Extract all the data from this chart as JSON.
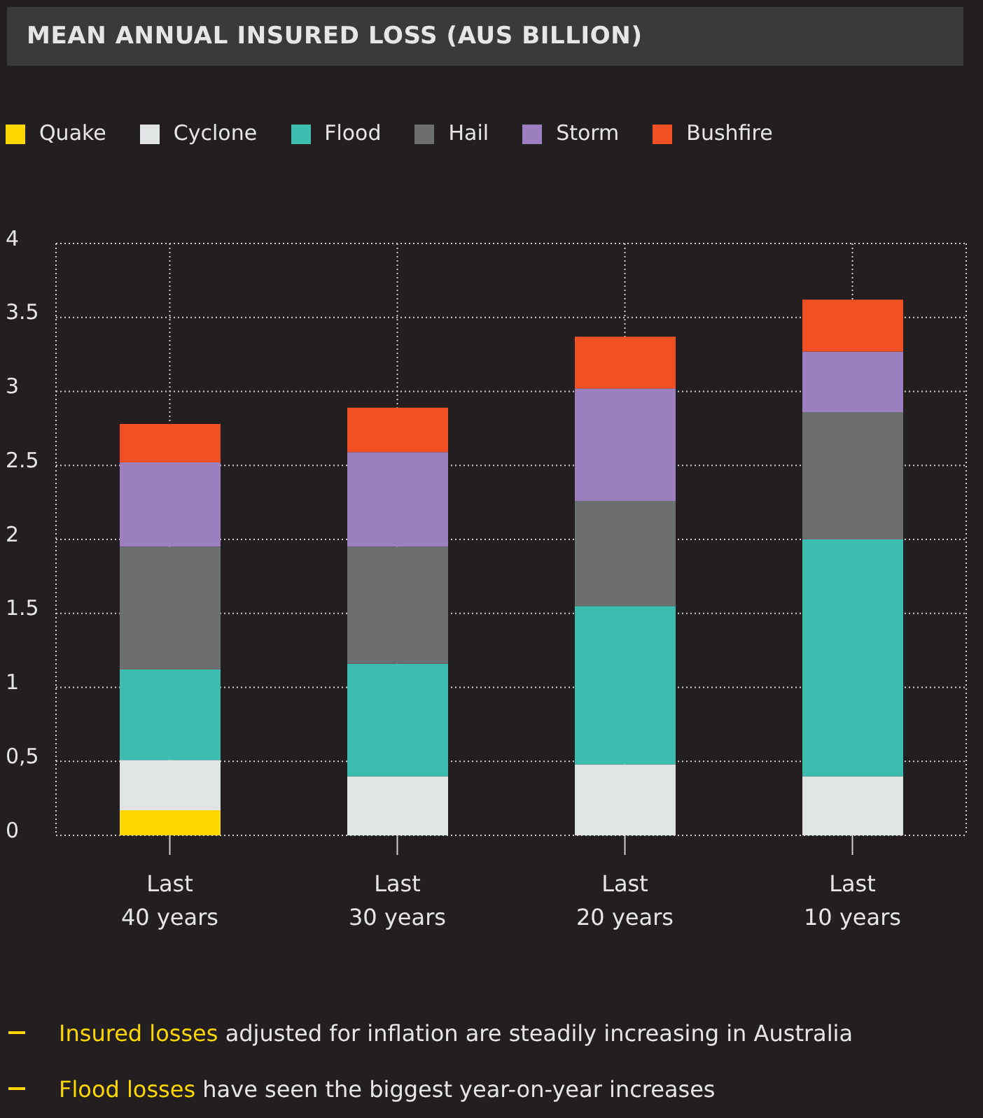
{
  "chart_data": {
    "type": "bar",
    "title": "MEAN ANNUAL INSURED LOSS (AUS BILLION)",
    "stacked": true,
    "categories": [
      "Last 40 years",
      "Last 30 years",
      "Last 20 years",
      "Last 10 years"
    ],
    "series": [
      {
        "name": "Quake",
        "color": "#ffd700",
        "values": [
          0.17,
          0,
          0,
          0
        ]
      },
      {
        "name": "Cyclone",
        "color": "#e1e4e5",
        "values": [
          0.34,
          0.4,
          0.48,
          0.4
        ]
      },
      {
        "name": "Flood",
        "color": "#3dbdb0",
        "values": [
          0.61,
          0.76,
          1.07,
          1.6
        ]
      },
      {
        "name": "Hail",
        "color": "#6d6e70",
        "values": [
          0.83,
          0.79,
          0.71,
          0.86
        ]
      },
      {
        "name": "Storm",
        "color": "#9b7fbf",
        "values": [
          0.57,
          0.64,
          0.76,
          0.41
        ]
      },
      {
        "name": "Bushfire",
        "color": "#f05023",
        "values": [
          0.26,
          0.3,
          0.35,
          0.35
        ]
      }
    ],
    "ylim": [
      0,
      4
    ],
    "yticks": [
      0,
      {
        "value": 0.5,
        "label": "0,5"
      },
      1,
      1.5,
      2,
      2.5,
      3,
      3.5,
      4
    ],
    "grid": true,
    "legend": "top left",
    "annotations": [
      "Insured losses adjusted for inflation are steadily increasing in Australia",
      "Flood losses have seen the biggest year-on-year increases"
    ]
  }
}
